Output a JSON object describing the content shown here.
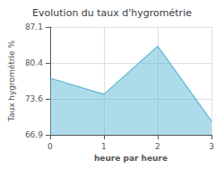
{
  "chart_data": {
    "type": "area",
    "title": "Evolution du taux d'hygrométrie",
    "xlabel": "heure par heure",
    "ylabel": "Taux hygrométrie %",
    "x": [
      0,
      1,
      2,
      3
    ],
    "values": [
      77.5,
      74.5,
      83.5,
      69.5
    ],
    "xlim": [
      0,
      3
    ],
    "xticks": [
      0,
      1,
      2,
      3
    ],
    "ylim": [
      66.9,
      87.1
    ],
    "yticks": [
      66.9,
      73.6,
      80.4,
      87.1
    ],
    "grid": true,
    "color": "#5bb8d4"
  }
}
